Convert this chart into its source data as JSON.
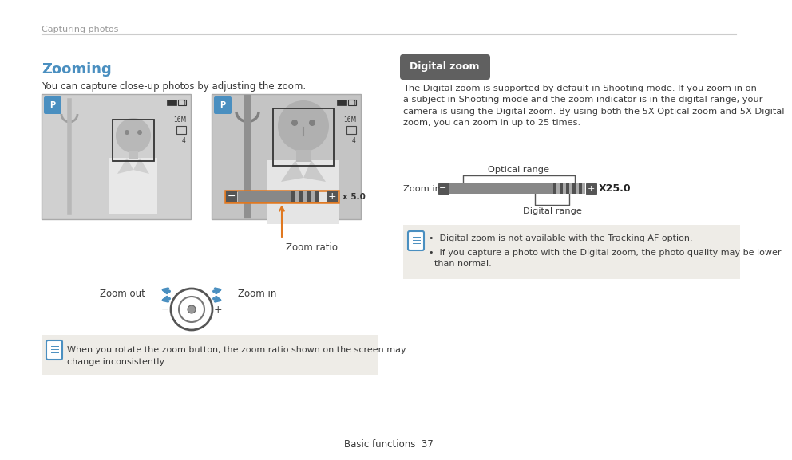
{
  "page_title": "Capturing photos",
  "section_title": "Zooming",
  "section_subtitle": "You can capture close-up photos by adjusting the zoom.",
  "zoom_ratio_label": "Zoom ratio",
  "zoom_out_label": "Zoom out",
  "zoom_in_label": "Zoom in",
  "note_left": "When you rotate the zoom button, the zoom ratio shown on the screen may\nchange inconsistently.",
  "digital_zoom_header": "Digital zoom",
  "digital_zoom_body": "The Digital zoom is supported by default in Shooting mode. If you zoom in on\na subject in Shooting mode and the zoom indicator is in the digital range, your\ncamera is using the Digital zoom. By using both the 5X Optical zoom and 5X Digital\nzoom, you can zoom in up to 25 times.",
  "optical_range_label": "Optical range",
  "zoom_indicator_label": "Zoom indicator",
  "digital_range_label": "Digital range",
  "x250_label": "X25.0",
  "note_right_1": "  Digital zoom is not available with the Tracking AF option.",
  "note_right_2": "  If you capture a photo with the Digital zoom, the photo quality may be lower\n  than normal.",
  "bg_color": "#ffffff",
  "title_color": "#4a8fc0",
  "text_color": "#3a3a3a",
  "note_bg_color": "#eeece7",
  "header_bg_color": "#606060",
  "header_text_color": "#ffffff",
  "orange_color": "#e07820",
  "page_title_color": "#999999",
  "divider_color": "#cccccc",
  "footer_text": "Basic functions  37",
  "cam_bg1": "#d0d0d0",
  "cam_bg2": "#c4c4c4",
  "cam_border": "#aaaaaa"
}
